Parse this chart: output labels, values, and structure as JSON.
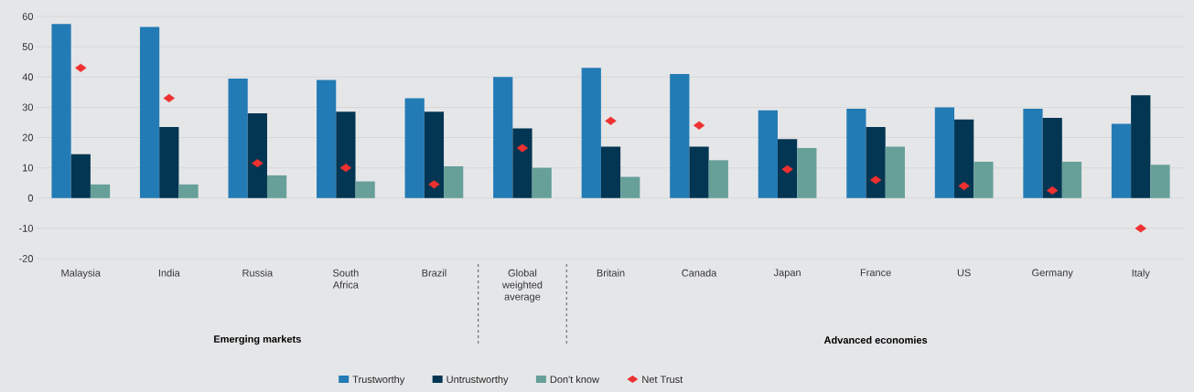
{
  "chart_data": {
    "type": "bar",
    "categories": [
      "Malaysia",
      "India",
      "Russia",
      "South Africa",
      "Brazil",
      "Global weighted average",
      "Britain",
      "Canada",
      "Japan",
      "France",
      "US",
      "Germany",
      "Italy"
    ],
    "series": [
      {
        "name": "Trustworthy",
        "color": "#237bb5",
        "values": [
          57.5,
          56.5,
          39.5,
          39,
          33,
          40,
          43,
          41,
          29,
          29.5,
          30,
          29.5,
          24.5
        ]
      },
      {
        "name": "Untrustworthy",
        "color": "#033652",
        "values": [
          14.5,
          23.5,
          28,
          28.5,
          28.5,
          23,
          17,
          17,
          19.5,
          23.5,
          26,
          26.5,
          34
        ]
      },
      {
        "name": "Don't know",
        "color": "#679f99",
        "values": [
          4.5,
          4.5,
          7.5,
          5.5,
          10.5,
          10,
          7,
          12.5,
          16.5,
          17,
          12,
          12,
          11
        ]
      },
      {
        "name": "Net Trust",
        "type": "scatter",
        "marker": "diamond",
        "color": "#ee3030",
        "x": [
          "Malaysia",
          "India",
          "Russia",
          "South Africa",
          "Brazil",
          "Global weighted average",
          "Britain",
          "Canada",
          "Japan",
          "France",
          "US",
          "Germany",
          "Italy"
        ],
        "values": [
          43,
          33,
          11.5,
          10,
          4.5,
          16.5,
          25.5,
          24,
          9.5,
          6,
          4,
          2.5,
          -10
        ]
      }
    ],
    "annotations": [
      "Emerging markets",
      "Advanced economies"
    ],
    "ylim": [
      -20,
      60
    ],
    "yticks": [
      -20,
      -10,
      0,
      10,
      20,
      30,
      40,
      50,
      60
    ],
    "grid": "y",
    "legend": "bottom"
  }
}
